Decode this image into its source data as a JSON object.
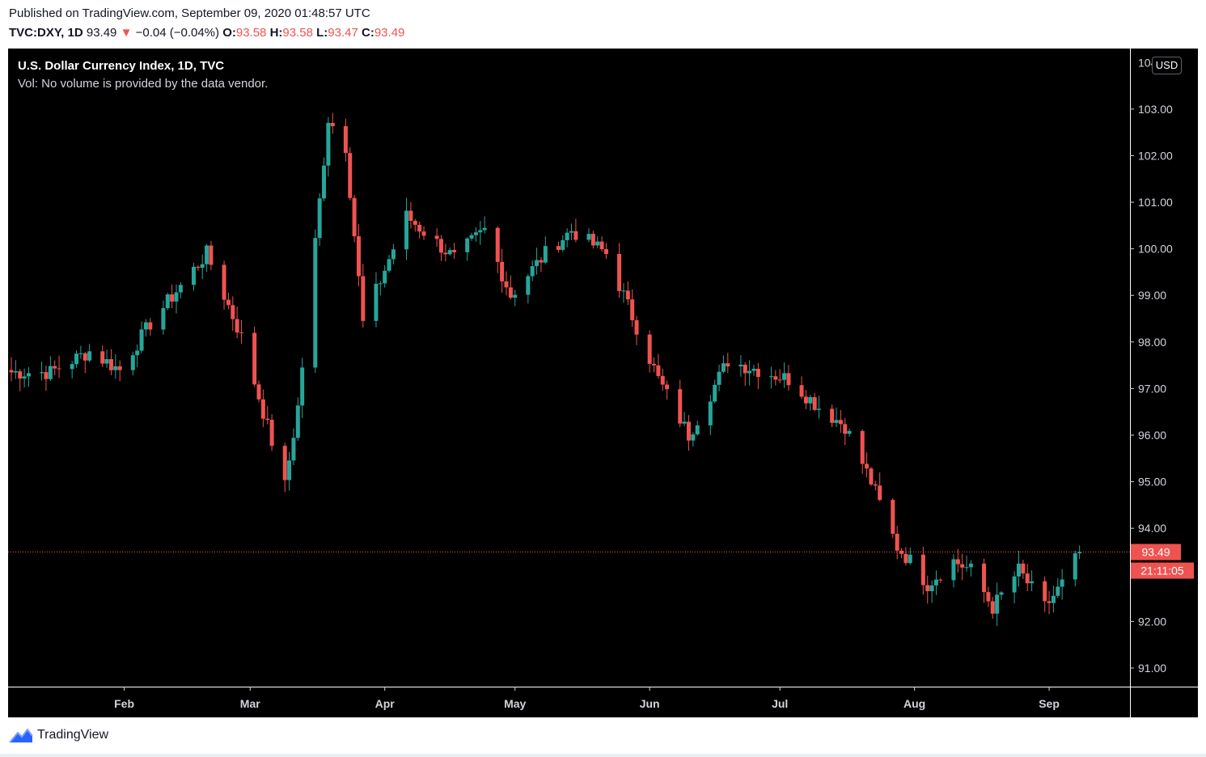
{
  "header": {
    "published": "Published on TradingView.com, September 09, 2020 01:48:57 UTC",
    "symbol": "TVC:DXY, 1D",
    "last": "93.49",
    "change_arrow": "▼",
    "change": "−0.04 (−0.04%)",
    "open_label": "O:",
    "open": "93.58",
    "high_label": "H:",
    "high": "93.58",
    "low_label": "L:",
    "low": "93.47",
    "close_label": "C:",
    "close": "93.49"
  },
  "legend": {
    "title": "U.S. Dollar Currency Index, 1D, TVC",
    "volume_note": "Vol: No volume is provided by the data vendor."
  },
  "price_scale": {
    "currency": "USD",
    "last_price_label": "93.49",
    "countdown": "21:11:05"
  },
  "colors": {
    "up": "#26a69a",
    "down": "#ef5350",
    "background": "#000000",
    "axis_text": "#d1d4dc",
    "price_line": "#ef5350"
  },
  "footer": {
    "brand": "TradingView"
  },
  "chart_data": {
    "type": "candlestick",
    "x_axis_labels": [
      "Feb",
      "Mar",
      "Apr",
      "May",
      "Jun",
      "Jul",
      "Aug",
      "Sep"
    ],
    "x_axis_label_dates": [
      "2020-02-01",
      "2020-03-01",
      "2020-04-01",
      "2020-05-01",
      "2020-06-01",
      "2020-07-01",
      "2020-08-01",
      "2020-09-01"
    ],
    "y_axis_labels": [
      "103.00",
      "102.00",
      "101.00",
      "100.00",
      "99.00",
      "98.00",
      "97.00",
      "96.00",
      "95.00",
      "94.00",
      "92.00",
      "91.00"
    ],
    "ylim": [
      90.6,
      104.3
    ],
    "last_price": 93.49,
    "anchors": [
      [
        "2020-01-06",
        97.35
      ],
      [
        "2020-01-15",
        97.35
      ],
      [
        "2020-01-24",
        97.8
      ],
      [
        "2020-01-31",
        97.4
      ],
      [
        "2020-02-07",
        98.4
      ],
      [
        "2020-02-20",
        99.9
      ],
      [
        "2020-02-28",
        98.1
      ],
      [
        "2020-03-09",
        94.9
      ],
      [
        "2020-03-12",
        96.6
      ],
      [
        "2020-03-19",
        102.8
      ],
      [
        "2020-03-23",
        102.2
      ],
      [
        "2020-03-27",
        98.4
      ],
      [
        "2020-04-06",
        100.7
      ],
      [
        "2020-04-17",
        99.8
      ],
      [
        "2020-04-24",
        100.4
      ],
      [
        "2020-04-30",
        99.0
      ],
      [
        "2020-05-08",
        99.9
      ],
      [
        "2020-05-14",
        100.4
      ],
      [
        "2020-05-22",
        99.9
      ],
      [
        "2020-06-03",
        97.2
      ],
      [
        "2020-06-10",
        96.0
      ],
      [
        "2020-06-19",
        97.6
      ],
      [
        "2020-06-26",
        97.4
      ],
      [
        "2020-07-03",
        97.2
      ],
      [
        "2020-07-10",
        96.6
      ],
      [
        "2020-07-16",
        96.2
      ],
      [
        "2020-07-22",
        95.0
      ],
      [
        "2020-07-28",
        93.6
      ],
      [
        "2020-07-31",
        93.3
      ],
      [
        "2020-08-04",
        92.8
      ],
      [
        "2020-08-10",
        93.3
      ],
      [
        "2020-08-14",
        93.1
      ],
      [
        "2020-08-19",
        92.3
      ],
      [
        "2020-08-25",
        93.1
      ],
      [
        "2020-08-31",
        92.3
      ],
      [
        "2020-09-04",
        92.8
      ],
      [
        "2020-09-08",
        93.49
      ]
    ]
  }
}
